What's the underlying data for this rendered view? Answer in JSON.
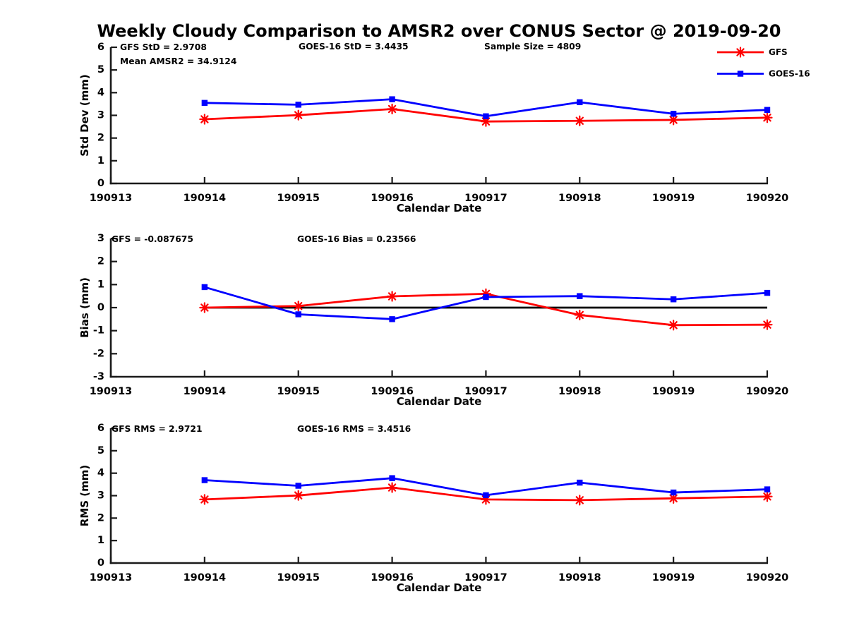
{
  "title": "Weekly Cloudy Comparison to AMSR2 over CONUS Sector @ 2019-09-20",
  "colors": {
    "gfs": "#ff0000",
    "goes16": "#0000ff",
    "zero_line": "#000000",
    "axis": "#1a1a1a"
  },
  "legend": {
    "position": "top-right",
    "entries": [
      {
        "label": "GFS",
        "marker": "asterisk",
        "color": "#ff0000"
      },
      {
        "label": "GOES-16",
        "marker": "square",
        "color": "#0000ff"
      }
    ]
  },
  "chart_data": [
    {
      "type": "line",
      "panel": "stddev",
      "ylabel": "Std Dev (mm)",
      "xlabel": "Calendar Date",
      "ylim": [
        0,
        6
      ],
      "yticks": [
        0,
        1,
        2,
        3,
        4,
        5,
        6
      ],
      "xticks": [
        "190913",
        "190914",
        "190915",
        "190916",
        "190917",
        "190918",
        "190919",
        "190920"
      ],
      "x": [
        "190914",
        "190915",
        "190916",
        "190917",
        "190918",
        "190919",
        "190920"
      ],
      "grid": false,
      "zero_line": false,
      "series": [
        {
          "name": "GFS",
          "color": "#ff0000",
          "marker": "asterisk",
          "values": [
            2.83,
            3.01,
            3.28,
            2.73,
            2.76,
            2.8,
            2.9
          ]
        },
        {
          "name": "GOES-16",
          "color": "#0000ff",
          "marker": "square",
          "values": [
            3.55,
            3.47,
            3.71,
            2.96,
            3.58,
            3.07,
            3.24
          ]
        }
      ],
      "annotations": [
        "GFS StD = 2.9708",
        "Mean AMSR2 = 34.9124",
        "GOES-16 StD = 3.4435",
        "Sample Size = 4809"
      ]
    },
    {
      "type": "line",
      "panel": "bias",
      "ylabel": "Bias (mm)",
      "xlabel": "Calendar Date",
      "ylim": [
        -3,
        3
      ],
      "yticks": [
        -3,
        -2,
        -1,
        0,
        1,
        2,
        3
      ],
      "xticks": [
        "190913",
        "190914",
        "190915",
        "190916",
        "190917",
        "190918",
        "190919",
        "190920"
      ],
      "x": [
        "190914",
        "190915",
        "190916",
        "190917",
        "190918",
        "190919",
        "190920"
      ],
      "grid": false,
      "zero_line": true,
      "series": [
        {
          "name": "GFS",
          "color": "#ff0000",
          "marker": "asterisk",
          "values": [
            0.0,
            0.07,
            0.49,
            0.6,
            -0.32,
            -0.76,
            -0.74
          ]
        },
        {
          "name": "GOES-16",
          "color": "#0000ff",
          "marker": "square",
          "values": [
            0.89,
            -0.29,
            -0.5,
            0.46,
            0.5,
            0.36,
            0.64
          ]
        }
      ],
      "annotations": [
        "GFS = -0.087675",
        "GOES-16 Bias  = 0.23566"
      ]
    },
    {
      "type": "line",
      "panel": "rms",
      "ylabel": "RMS (mm)",
      "xlabel": "Calendar Date",
      "ylim": [
        0,
        6
      ],
      "yticks": [
        0,
        1,
        2,
        3,
        4,
        5,
        6
      ],
      "xticks": [
        "190913",
        "190914",
        "190915",
        "190916",
        "190917",
        "190918",
        "190919",
        "190920"
      ],
      "x": [
        "190914",
        "190915",
        "190916",
        "190917",
        "190918",
        "190919",
        "190920"
      ],
      "grid": false,
      "zero_line": false,
      "series": [
        {
          "name": "GFS",
          "color": "#ff0000",
          "marker": "asterisk",
          "values": [
            2.83,
            3.01,
            3.36,
            2.83,
            2.8,
            2.88,
            2.96
          ]
        },
        {
          "name": "GOES-16",
          "color": "#0000ff",
          "marker": "square",
          "values": [
            3.69,
            3.44,
            3.78,
            3.02,
            3.58,
            3.14,
            3.28
          ]
        }
      ],
      "annotations": [
        "GFS RMS = 2.9721",
        "GOES-16 RMS = 3.4516"
      ]
    }
  ]
}
